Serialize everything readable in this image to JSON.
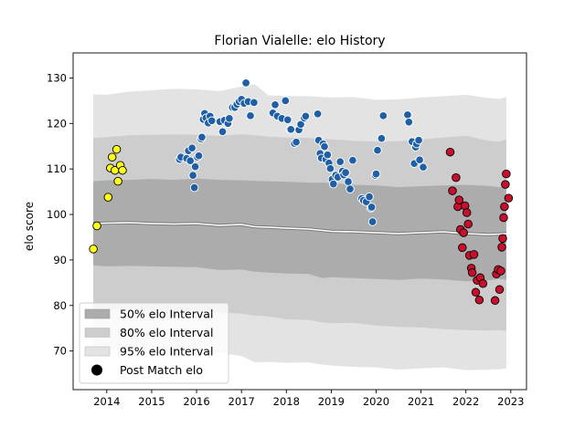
{
  "chart_data": {
    "type": "scatter",
    "title": "Florian Vialelle: elo History",
    "xlabel": "",
    "ylabel": "elo score",
    "xlim": [
      2013.25,
      2023.35
    ],
    "ylim": [
      61.5,
      135.5
    ],
    "x_ticks": [
      2014,
      2015,
      2016,
      2017,
      2018,
      2019,
      2020,
      2021,
      2022,
      2023
    ],
    "y_ticks": [
      70,
      80,
      90,
      100,
      110,
      120,
      130
    ],
    "grid": false,
    "legend_position": "lower-left",
    "legend": [
      {
        "label": "50% elo Interval",
        "color": "#acacac"
      },
      {
        "label": "80% elo Interval",
        "color": "#cdcdcd"
      },
      {
        "label": "95% elo Interval",
        "color": "#e3e3e3"
      },
      {
        "label": "Post Match elo",
        "color": "#000000"
      }
    ],
    "bands": {
      "x": [
        2013.7,
        2014.0,
        2014.5,
        2015.0,
        2015.5,
        2016.0,
        2016.5,
        2017.0,
        2017.3,
        2017.6,
        2018.0,
        2018.5,
        2018.8,
        2019.0,
        2019.5,
        2020.0,
        2020.5,
        2021.0,
        2021.5,
        2022.0,
        2022.5,
        2022.75,
        2022.9
      ],
      "center": [
        98.0,
        98.1,
        98.2,
        98.0,
        97.9,
        98.0,
        97.6,
        97.8,
        97.3,
        97.2,
        97.0,
        96.8,
        96.5,
        96.3,
        96.2,
        96.0,
        95.8,
        96.0,
        96.2,
        95.8,
        95.6,
        95.7,
        95.8
      ],
      "p50": [
        [
          88.8,
          107.3
        ],
        [
          88.6,
          107.5
        ],
        [
          88.7,
          107.6
        ],
        [
          88.6,
          107.8
        ],
        [
          88.5,
          107.6
        ],
        [
          88.4,
          107.9
        ],
        [
          87.8,
          107.6
        ],
        [
          87.9,
          107.5
        ],
        [
          87.4,
          107.4
        ],
        [
          87.2,
          107.3
        ],
        [
          87.0,
          107.2
        ],
        [
          86.9,
          107.0
        ],
        [
          86.0,
          107.0
        ],
        [
          86.2,
          106.9
        ],
        [
          86.0,
          106.5
        ],
        [
          85.8,
          106.4
        ],
        [
          85.6,
          106.0
        ],
        [
          85.9,
          106.2
        ],
        [
          85.7,
          106.4
        ],
        [
          85.3,
          106.5
        ],
        [
          85.5,
          106.3
        ],
        [
          85.8,
          106.0
        ],
        [
          85.6,
          106.4
        ]
      ],
      "p80": [
        [
          79.5,
          116.8
        ],
        [
          79.2,
          117.0
        ],
        [
          79.1,
          117.4
        ],
        [
          79.0,
          117.5
        ],
        [
          78.6,
          117.6
        ],
        [
          78.8,
          117.5
        ],
        [
          78.5,
          117.3
        ],
        [
          78.2,
          117.6
        ],
        [
          77.8,
          117.4
        ],
        [
          77.6,
          117.1
        ],
        [
          77.0,
          116.9
        ],
        [
          76.8,
          116.8
        ],
        [
          76.3,
          116.6
        ],
        [
          76.1,
          116.5
        ],
        [
          76.2,
          116.2
        ],
        [
          75.6,
          116.0
        ],
        [
          75.3,
          116.1
        ],
        [
          75.2,
          116.5
        ],
        [
          74.8,
          116.9
        ],
        [
          74.6,
          117.3
        ],
        [
          74.5,
          116.2
        ],
        [
          74.6,
          116.0
        ],
        [
          74.4,
          116.5
        ]
      ],
      "p95": [
        [
          71.0,
          126.4
        ],
        [
          70.5,
          126.3
        ],
        [
          70.2,
          127.0
        ],
        [
          69.8,
          127.3
        ],
        [
          69.9,
          127.6
        ],
        [
          70.1,
          127.5
        ],
        [
          69.6,
          127.1
        ],
        [
          68.9,
          128.1
        ],
        [
          67.5,
          128.6
        ],
        [
          67.6,
          126.2
        ],
        [
          67.4,
          126.0
        ],
        [
          67.5,
          126.0
        ],
        [
          67.0,
          125.8
        ],
        [
          66.8,
          125.7
        ],
        [
          66.5,
          125.8
        ],
        [
          66.4,
          125.2
        ],
        [
          65.9,
          125.3
        ],
        [
          66.2,
          125.7
        ],
        [
          66.4,
          126.0
        ],
        [
          65.8,
          126.3
        ],
        [
          65.9,
          125.6
        ],
        [
          66.0,
          125.4
        ],
        [
          66.2,
          125.8
        ]
      ]
    },
    "series": [
      {
        "color": "#ffff1a",
        "points": [
          [
            2013.7,
            92.4
          ],
          [
            2013.78,
            97.5
          ],
          [
            2014.03,
            103.8
          ],
          [
            2014.08,
            110.2
          ],
          [
            2014.12,
            112.6
          ],
          [
            2014.18,
            109.7
          ],
          [
            2014.22,
            114.3
          ],
          [
            2014.25,
            107.3
          ],
          [
            2014.3,
            110.8
          ],
          [
            2014.35,
            109.7
          ]
        ]
      },
      {
        "color": "#1f5fa5",
        "points": [
          [
            2015.62,
            112.1
          ],
          [
            2015.65,
            112.6
          ],
          [
            2015.78,
            112.3
          ],
          [
            2015.82,
            114.0
          ],
          [
            2015.86,
            111.8
          ],
          [
            2015.9,
            114.6
          ],
          [
            2015.92,
            108.6
          ],
          [
            2015.95,
            105.9
          ],
          [
            2015.97,
            110.5
          ],
          [
            2016.02,
            112.6
          ],
          [
            2016.05,
            112.9
          ],
          [
            2016.1,
            116.6
          ],
          [
            2016.12,
            117.0
          ],
          [
            2016.15,
            120.9
          ],
          [
            2016.18,
            122.2
          ],
          [
            2016.21,
            121.2
          ],
          [
            2016.26,
            120.1
          ],
          [
            2016.3,
            121.6
          ],
          [
            2016.34,
            120.6
          ],
          [
            2016.52,
            120.4
          ],
          [
            2016.58,
            118.2
          ],
          [
            2016.62,
            120.7
          ],
          [
            2016.7,
            120.0
          ],
          [
            2016.73,
            121.1
          ],
          [
            2016.8,
            123.5
          ],
          [
            2016.85,
            123.5
          ],
          [
            2016.9,
            124.2
          ],
          [
            2016.95,
            124.8
          ],
          [
            2017.0,
            125.3
          ],
          [
            2017.06,
            124.4
          ],
          [
            2017.1,
            128.9
          ],
          [
            2017.15,
            124.8
          ],
          [
            2017.2,
            121.7
          ],
          [
            2017.28,
            124.6
          ],
          [
            2017.7,
            122.3
          ],
          [
            2017.75,
            124.1
          ],
          [
            2017.8,
            121.6
          ],
          [
            2017.9,
            121.1
          ],
          [
            2017.98,
            125.0
          ],
          [
            2018.03,
            120.8
          ],
          [
            2018.08,
            118.7
          ],
          [
            2018.1,
            118.7
          ],
          [
            2018.18,
            115.6
          ],
          [
            2018.22,
            115.9
          ],
          [
            2018.28,
            118.6
          ],
          [
            2018.32,
            119.8
          ],
          [
            2018.4,
            121.2
          ],
          [
            2018.43,
            121.6
          ],
          [
            2018.7,
            122.1
          ],
          [
            2018.72,
            116.3
          ],
          [
            2018.75,
            113.4
          ],
          [
            2018.78,
            112.4
          ],
          [
            2018.82,
            115.5
          ],
          [
            2018.85,
            114.9
          ],
          [
            2018.88,
            112.1
          ],
          [
            2018.92,
            113.1
          ],
          [
            2018.95,
            111.3
          ],
          [
            2018.98,
            110.1
          ],
          [
            2019.02,
            107.7
          ],
          [
            2019.05,
            106.7
          ],
          [
            2019.1,
            108.6
          ],
          [
            2019.15,
            108.2
          ],
          [
            2019.2,
            111.6
          ],
          [
            2019.25,
            109.5
          ],
          [
            2019.28,
            108.7
          ],
          [
            2019.32,
            109.2
          ],
          [
            2019.38,
            107.2
          ],
          [
            2019.42,
            105.6
          ],
          [
            2019.48,
            111.9
          ],
          [
            2019.68,
            103.5
          ],
          [
            2019.72,
            103.1
          ],
          [
            2019.78,
            102.8
          ],
          [
            2019.85,
            103.9
          ],
          [
            2019.88,
            101.4
          ],
          [
            2019.9,
            101.6
          ],
          [
            2019.92,
            98.4
          ],
          [
            2019.98,
            108.6
          ],
          [
            2020.0,
            108.9
          ],
          [
            2020.03,
            114.1
          ],
          [
            2020.12,
            116.7
          ],
          [
            2020.16,
            121.7
          ],
          [
            2020.7,
            121.9
          ],
          [
            2020.73,
            120.3
          ],
          [
            2020.8,
            116.0
          ],
          [
            2020.85,
            111.2
          ],
          [
            2020.88,
            114.8
          ],
          [
            2020.9,
            115.5
          ],
          [
            2020.95,
            116.3
          ],
          [
            2020.97,
            112.0
          ],
          [
            2021.05,
            110.4
          ]
        ]
      },
      {
        "color": "#c8102e",
        "points": [
          [
            2021.65,
            113.7
          ],
          [
            2021.7,
            105.2
          ],
          [
            2021.78,
            108.1
          ],
          [
            2021.82,
            101.7
          ],
          [
            2021.85,
            103.2
          ],
          [
            2021.88,
            96.7
          ],
          [
            2021.92,
            92.7
          ],
          [
            2021.95,
            96.0
          ],
          [
            2021.98,
            101.9
          ],
          [
            2022.02,
            100.4
          ],
          [
            2022.05,
            97.9
          ],
          [
            2022.08,
            91.0
          ],
          [
            2022.12,
            88.2
          ],
          [
            2022.14,
            87.2
          ],
          [
            2022.18,
            91.2
          ],
          [
            2022.22,
            82.9
          ],
          [
            2022.25,
            85.5
          ],
          [
            2022.3,
            81.2
          ],
          [
            2022.32,
            86.1
          ],
          [
            2022.38,
            84.8
          ],
          [
            2022.65,
            81.1
          ],
          [
            2022.68,
            86.9
          ],
          [
            2022.72,
            87.9
          ],
          [
            2022.75,
            83.5
          ],
          [
            2022.78,
            87.6
          ],
          [
            2022.8,
            92.8
          ],
          [
            2022.82,
            94.7
          ],
          [
            2022.84,
            99.3
          ],
          [
            2022.86,
            101.7
          ],
          [
            2022.88,
            106.6
          ],
          [
            2022.9,
            108.9
          ],
          [
            2022.95,
            103.6
          ]
        ]
      }
    ]
  }
}
